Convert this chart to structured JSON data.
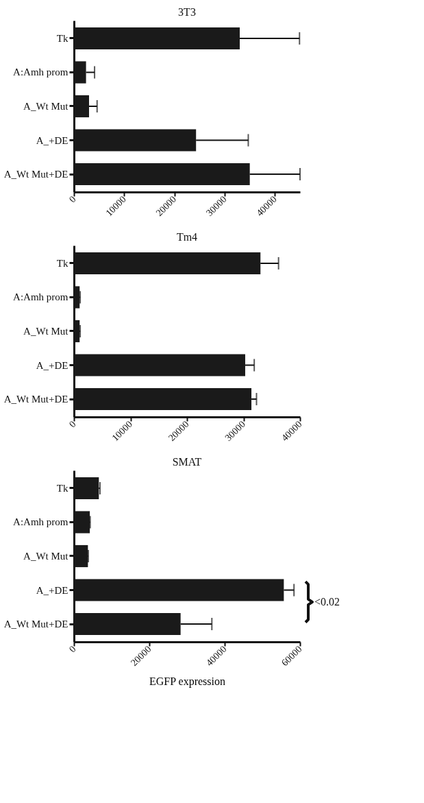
{
  "chart_data": [
    {
      "type": "bar",
      "orientation": "horizontal",
      "title": "3T3",
      "categories": [
        "Tk",
        "A:Amh prom",
        "A_Wt Mut",
        "A_+DE",
        "A_Wt Mut+DE"
      ],
      "values": [
        33000,
        2400,
        3000,
        24300,
        35000
      ],
      "errors": [
        [
          33000,
          44900
        ],
        [
          2400,
          4100
        ],
        [
          3000,
          4600
        ],
        [
          24300,
          34700
        ],
        [
          35000,
          45000
        ]
      ],
      "color": "#1a1a1a",
      "xlim": [
        0,
        45000
      ],
      "xticks": [
        0,
        10000,
        20000,
        30000,
        40000
      ],
      "grid": false
    },
    {
      "type": "bar",
      "orientation": "horizontal",
      "title": "Tm4",
      "categories": [
        "Tk",
        "A:Amh prom",
        "A_Wt Mut",
        "A_+DE",
        "A_Wt Mut+DE"
      ],
      "values": [
        33000,
        1000,
        1000,
        30300,
        31400
      ],
      "errors": [
        [
          33000,
          36200
        ],
        [
          1000,
          1100
        ],
        [
          1000,
          1100
        ],
        [
          30300,
          31900
        ],
        [
          31400,
          32300
        ]
      ],
      "color": "#1a1a1a",
      "xlim": [
        0,
        40000
      ],
      "xticks": [
        0,
        10000,
        20000,
        30000,
        40000
      ],
      "grid": false
    },
    {
      "type": "bar",
      "orientation": "horizontal",
      "title": "SMAT",
      "xlabel": "EGFP expression",
      "categories": [
        "Tk",
        "A:Amh prom",
        "A_Wt Mut",
        "A_+DE",
        "A_Wt Mut+DE"
      ],
      "values": [
        6600,
        4200,
        3700,
        55700,
        28300
      ],
      "errors": [
        [
          6600,
          6900
        ],
        [
          4200,
          4300
        ],
        [
          3700,
          3800
        ],
        [
          55700,
          58400
        ],
        [
          28300,
          36600
        ]
      ],
      "color": "#1a1a1a",
      "xlim": [
        0,
        60000
      ],
      "xticks": [
        0,
        20000,
        40000,
        60000
      ],
      "grid": false,
      "annotations": [
        "<0.02"
      ]
    }
  ]
}
